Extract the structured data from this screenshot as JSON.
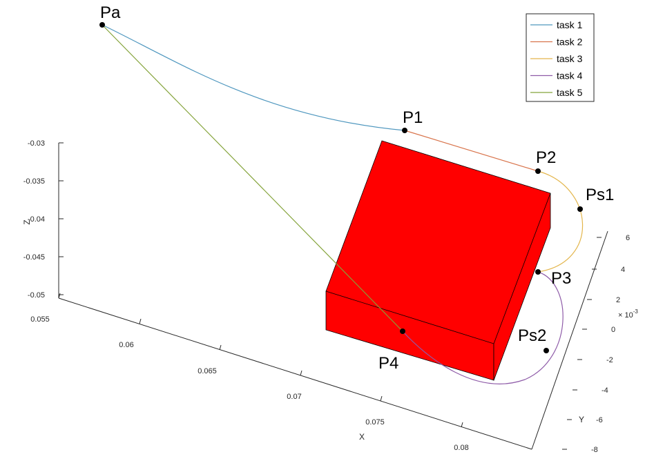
{
  "chart_data": {
    "type": "line",
    "title": "",
    "axes": {
      "x": {
        "label": "X",
        "ticks": [
          "0.055",
          "0.06",
          "0.065",
          "0.07",
          "0.075",
          "0.08"
        ]
      },
      "y": {
        "label": "Y",
        "exponent": "× 10",
        "exponent_power": "-3",
        "ticks": [
          "6",
          "4",
          "2",
          "0",
          "-2",
          "-4",
          "-6",
          "-8"
        ]
      },
      "z": {
        "label": "Z",
        "ticks": [
          "-0.03",
          "-0.035",
          "-0.04",
          "-0.045",
          "-0.05"
        ]
      }
    },
    "grid": false,
    "legend_position": "top-right",
    "series": [
      {
        "name": "task 1",
        "color": "#4D96BE",
        "from": "Pa",
        "to": "P1"
      },
      {
        "name": "task 2",
        "color": "#D8734A",
        "from": "P1",
        "to": "P2"
      },
      {
        "name": "task 3",
        "color": "#E3B54A",
        "from": "P2",
        "via": "Ps1",
        "to": "P3"
      },
      {
        "name": "task 4",
        "color": "#8E5BA8",
        "from": "P3",
        "via": "Ps2",
        "to": "P4"
      },
      {
        "name": "task 5",
        "color": "#84A33A",
        "from": "P4",
        "to": "Pa"
      }
    ],
    "points": [
      "Pa",
      "P1",
      "P2",
      "Ps1",
      "P3",
      "Ps2",
      "P4"
    ],
    "obstacle": {
      "shape": "box",
      "color": "#FF0000"
    }
  }
}
